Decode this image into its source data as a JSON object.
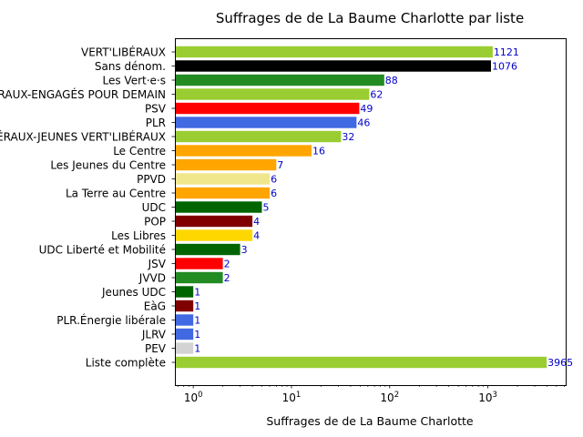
{
  "chart_data": {
    "type": "bar",
    "orientation": "horizontal",
    "title": "Suffrages de de La Baume Charlotte par liste",
    "xlabel": "Suffrages de de La Baume Charlotte",
    "ylabel": "",
    "xscale": "log",
    "xlim": [
      0.65,
      6200
    ],
    "x_ticks": [
      1,
      10,
      100,
      1000
    ],
    "x_tick_labels": [
      {
        "base": "10",
        "exp": "0"
      },
      {
        "base": "10",
        "exp": "1"
      },
      {
        "base": "10",
        "exp": "2"
      },
      {
        "base": "10",
        "exp": "3"
      }
    ],
    "grid": false,
    "legend": "none",
    "bars": [
      {
        "label": "VERT'LIBÉRAUX",
        "value": 1121,
        "color": "#9acd32"
      },
      {
        "label": "Sans dénom.",
        "value": 1076,
        "color": "#000000"
      },
      {
        "label": "Les Vert·e·s",
        "value": 88,
        "color": "#228b22"
      },
      {
        "label": "JEUNES VERT'LIBÉRAUX-ENGAGÉS POUR DEMAIN",
        "value": 62,
        "color": "#9acd32"
      },
      {
        "label": "PSV",
        "value": 49,
        "color": "#ff0000"
      },
      {
        "label": "PLR",
        "value": 46,
        "color": "#4169e1"
      },
      {
        "label": "JEUNES VERT'LIBÉRAUX-JEUNES VERT'LIBÉRAUX",
        "value": 32,
        "color": "#9acd32"
      },
      {
        "label": "Le Centre",
        "value": 16,
        "color": "#ffa500"
      },
      {
        "label": "Les Jeunes du Centre",
        "value": 7,
        "color": "#ffa500"
      },
      {
        "label": "PPVD",
        "value": 6,
        "color": "#f0e68c"
      },
      {
        "label": "La Terre au Centre",
        "value": 6,
        "color": "#ffa500"
      },
      {
        "label": "UDC",
        "value": 5,
        "color": "#006400"
      },
      {
        "label": "POP",
        "value": 4,
        "color": "#800000"
      },
      {
        "label": "Les Libres",
        "value": 4,
        "color": "#ffd700"
      },
      {
        "label": "UDC Liberté et Mobilité",
        "value": 3,
        "color": "#006400"
      },
      {
        "label": "JSV",
        "value": 2,
        "color": "#ff0000"
      },
      {
        "label": "JVVD",
        "value": 2,
        "color": "#228b22"
      },
      {
        "label": "Jeunes UDC",
        "value": 1,
        "color": "#006400"
      },
      {
        "label": "EàG",
        "value": 1,
        "color": "#800000"
      },
      {
        "label": "PLR.Énergie libérale",
        "value": 1,
        "color": "#4169e1"
      },
      {
        "label": "JLRV",
        "value": 1,
        "color": "#4169e1"
      },
      {
        "label": "PEV",
        "value": 1,
        "color": "#d3d3d3"
      },
      {
        "label": "Liste complète",
        "value": 3965,
        "color": "#9acd32"
      }
    ]
  }
}
